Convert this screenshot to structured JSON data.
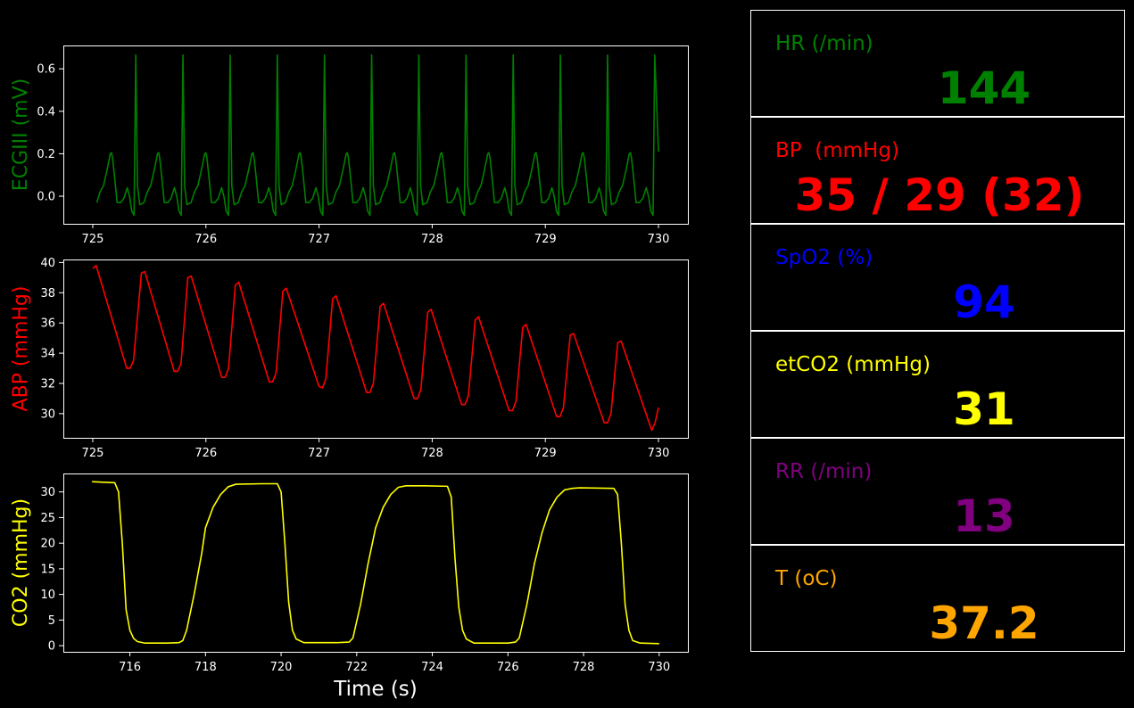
{
  "colors": {
    "hr": "#008000",
    "bp": "#ff0000",
    "spo2": "#0000ff",
    "etco2": "#ffff00",
    "rr": "#800080",
    "temp": "#ffa500",
    "axis": "#ffffff",
    "background": "#000000"
  },
  "vitals": [
    {
      "key": "hr",
      "label": "HR (/min)",
      "value": "144",
      "color": "#008000"
    },
    {
      "key": "bp",
      "label": "BP  (mmHg)",
      "value": "35 / 29 (32)",
      "color": "#ff0000"
    },
    {
      "key": "spo2",
      "label": "SpO2 (%)",
      "value": "94",
      "color": "#0000ff"
    },
    {
      "key": "etco2",
      "label": "etCO2 (mmHg)",
      "value": "31",
      "color": "#ffff00"
    },
    {
      "key": "rr",
      "label": "RR (/min)",
      "value": "13",
      "color": "#800080"
    },
    {
      "key": "temp",
      "label": "T (oC)",
      "value": "37.2",
      "color": "#ffa500"
    }
  ],
  "chart_data": [
    {
      "type": "line",
      "name": "ecg",
      "ylabel": "ECGIII (mV)",
      "xlabel": "",
      "color": "#008000",
      "xlim": [
        724.74,
        730.26
      ],
      "ylim": [
        -0.13,
        0.71
      ],
      "xticks": [
        725,
        726,
        727,
        728,
        729,
        730
      ],
      "yticks": [
        0.0,
        0.2,
        0.4,
        0.6
      ],
      "ytick_labels": [
        "0.0",
        "0.2",
        "0.4",
        "0.6"
      ],
      "beat_interval": 0.417,
      "first_r_peak": 725.38,
      "r_peak": 0.665,
      "t_peak": 0.205,
      "x_end": 729.98
    },
    {
      "type": "line",
      "name": "abp",
      "ylabel": "ABP (mmHg)",
      "xlabel": "",
      "color": "#ff0000",
      "xlim": [
        724.74,
        730.26
      ],
      "ylim": [
        28.4,
        40.2
      ],
      "xticks": [
        725,
        726,
        727,
        728,
        729,
        730
      ],
      "yticks": [
        30,
        32,
        34,
        36,
        38,
        40
      ],
      "ytick_labels": [
        "30",
        "32",
        "34",
        "36",
        "38",
        "40"
      ],
      "points": [
        [
          725.0,
          39.6
        ],
        [
          725.03,
          39.8
        ],
        [
          725.3,
          33.0
        ],
        [
          725.33,
          33.0
        ],
        [
          725.36,
          33.5
        ],
        [
          725.43,
          39.3
        ],
        [
          725.46,
          39.4
        ],
        [
          725.72,
          32.8
        ],
        [
          725.75,
          32.8
        ],
        [
          725.78,
          33.3
        ],
        [
          725.84,
          39.0
        ],
        [
          725.87,
          39.1
        ],
        [
          726.14,
          32.4
        ],
        [
          726.17,
          32.4
        ],
        [
          726.2,
          33.0
        ],
        [
          726.26,
          38.5
        ],
        [
          726.29,
          38.7
        ],
        [
          726.56,
          32.1
        ],
        [
          726.59,
          32.1
        ],
        [
          726.62,
          32.7
        ],
        [
          726.68,
          38.1
        ],
        [
          726.71,
          38.3
        ],
        [
          727.0,
          31.8
        ],
        [
          727.03,
          31.7
        ],
        [
          727.06,
          32.3
        ],
        [
          727.12,
          37.6
        ],
        [
          727.15,
          37.8
        ],
        [
          727.42,
          31.4
        ],
        [
          727.45,
          31.4
        ],
        [
          727.48,
          32.0
        ],
        [
          727.54,
          37.1
        ],
        [
          727.57,
          37.3
        ],
        [
          727.84,
          31.0
        ],
        [
          727.87,
          31.0
        ],
        [
          727.9,
          31.6
        ],
        [
          727.96,
          36.7
        ],
        [
          727.99,
          36.9
        ],
        [
          728.26,
          30.6
        ],
        [
          728.29,
          30.6
        ],
        [
          728.32,
          31.2
        ],
        [
          728.38,
          36.2
        ],
        [
          728.41,
          36.4
        ],
        [
          728.68,
          30.2
        ],
        [
          728.71,
          30.2
        ],
        [
          728.74,
          30.8
        ],
        [
          728.8,
          35.7
        ],
        [
          728.83,
          35.9
        ],
        [
          729.1,
          29.8
        ],
        [
          729.13,
          29.8
        ],
        [
          729.16,
          30.4
        ],
        [
          729.22,
          35.2
        ],
        [
          729.25,
          35.3
        ],
        [
          729.52,
          29.4
        ],
        [
          729.55,
          29.4
        ],
        [
          729.58,
          30.0
        ],
        [
          729.64,
          34.7
        ],
        [
          729.67,
          34.8
        ],
        [
          729.94,
          28.9
        ],
        [
          729.97,
          29.4
        ],
        [
          730.0,
          30.4
        ]
      ]
    },
    {
      "type": "line",
      "name": "co2",
      "ylabel": "CO2 (mmHg)",
      "xlabel": "Time (s)",
      "color": "#ffff00",
      "xlim": [
        714.24,
        730.76
      ],
      "ylim": [
        -1.2,
        33.6
      ],
      "xticks": [
        716,
        718,
        720,
        722,
        724,
        726,
        728,
        730
      ],
      "yticks": [
        0,
        5,
        10,
        15,
        20,
        25,
        30
      ],
      "ytick_labels": [
        "0",
        "5",
        "10",
        "15",
        "20",
        "25",
        "30"
      ],
      "points": [
        [
          715.0,
          32.0
        ],
        [
          715.3,
          31.9
        ],
        [
          715.6,
          31.8
        ],
        [
          715.7,
          30.0
        ],
        [
          715.8,
          20.0
        ],
        [
          715.9,
          7.0
        ],
        [
          716.0,
          3.0
        ],
        [
          716.1,
          1.4
        ],
        [
          716.2,
          0.8
        ],
        [
          716.4,
          0.5
        ],
        [
          717.0,
          0.5
        ],
        [
          717.3,
          0.6
        ],
        [
          717.4,
          1.0
        ],
        [
          717.5,
          3.0
        ],
        [
          717.7,
          10.0
        ],
        [
          717.9,
          18.0
        ],
        [
          718.0,
          23.0
        ],
        [
          718.2,
          27.0
        ],
        [
          718.4,
          29.5
        ],
        [
          718.6,
          31.0
        ],
        [
          718.8,
          31.5
        ],
        [
          719.5,
          31.6
        ],
        [
          719.9,
          31.6
        ],
        [
          720.0,
          30.0
        ],
        [
          720.1,
          20.0
        ],
        [
          720.2,
          8.5
        ],
        [
          720.3,
          3.0
        ],
        [
          720.4,
          1.3
        ],
        [
          720.6,
          0.6
        ],
        [
          721.5,
          0.6
        ],
        [
          721.8,
          0.7
        ],
        [
          721.9,
          1.5
        ],
        [
          722.1,
          8.0
        ],
        [
          722.3,
          16.0
        ],
        [
          722.5,
          23.0
        ],
        [
          722.7,
          27.0
        ],
        [
          722.9,
          29.5
        ],
        [
          723.1,
          30.9
        ],
        [
          723.3,
          31.2
        ],
        [
          723.8,
          31.2
        ],
        [
          724.4,
          31.1
        ],
        [
          724.5,
          29.0
        ],
        [
          724.6,
          17.0
        ],
        [
          724.7,
          7.5
        ],
        [
          724.8,
          3.0
        ],
        [
          724.9,
          1.3
        ],
        [
          725.1,
          0.5
        ],
        [
          726.0,
          0.5
        ],
        [
          726.2,
          0.7
        ],
        [
          726.3,
          1.5
        ],
        [
          726.5,
          8.0
        ],
        [
          726.7,
          16.0
        ],
        [
          726.9,
          22.0
        ],
        [
          727.1,
          26.5
        ],
        [
          727.3,
          29.0
        ],
        [
          727.5,
          30.4
        ],
        [
          727.7,
          30.7
        ],
        [
          727.9,
          30.8
        ],
        [
          728.8,
          30.7
        ],
        [
          728.9,
          29.5
        ],
        [
          729.0,
          20.0
        ],
        [
          729.1,
          8.0
        ],
        [
          729.2,
          3.0
        ],
        [
          729.3,
          1.0
        ],
        [
          729.5,
          0.5
        ],
        [
          730.0,
          0.4
        ]
      ]
    }
  ]
}
